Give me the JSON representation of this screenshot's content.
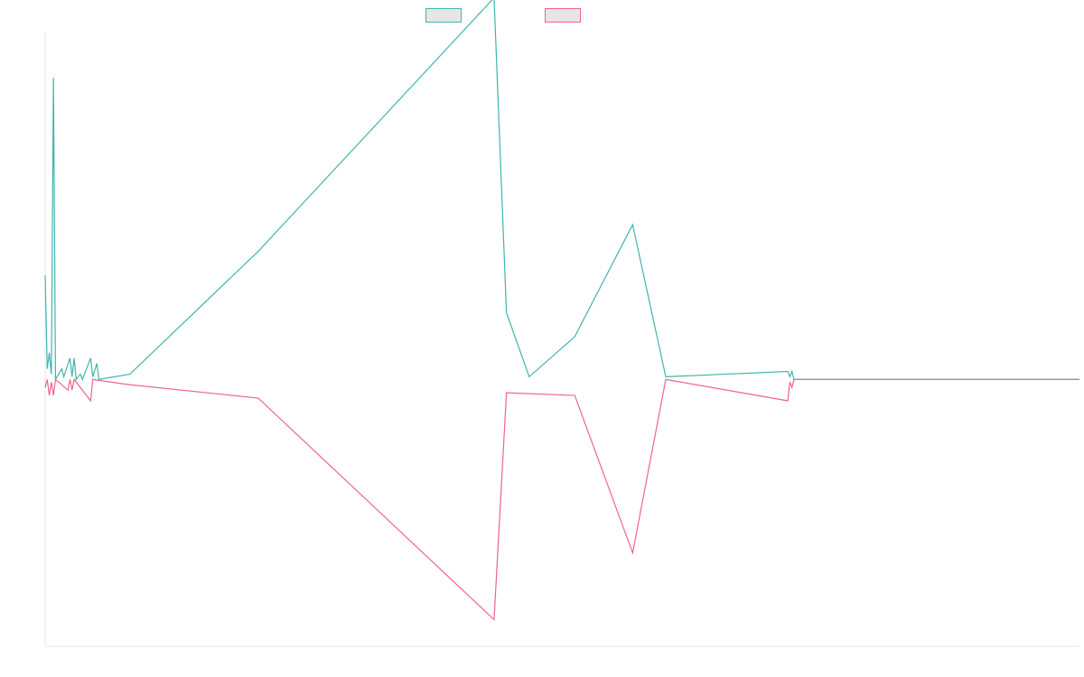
{
  "chart_data": {
    "type": "line",
    "title": "",
    "xlabel": "",
    "ylabel": "",
    "grid": false,
    "legend": "top-center",
    "x_range": [
      0,
      500
    ],
    "ylim": [
      -1.0,
      1.3
    ],
    "baseline": 0,
    "colors": {
      "series_1": "#3fb5ad",
      "series_2": "#f0648c"
    },
    "series": [
      {
        "color": "#3fb5ad",
        "points": [
          [
            0,
            0.39
          ],
          [
            1,
            0.04
          ],
          [
            2,
            0.1
          ],
          [
            3,
            0.02
          ],
          [
            4,
            1.13
          ],
          [
            5,
            0.0
          ],
          [
            8,
            0.04
          ],
          [
            9,
            0.01
          ],
          [
            12,
            0.08
          ],
          [
            13,
            0.01
          ],
          [
            14,
            0.08
          ],
          [
            15,
            0.0
          ],
          [
            17,
            0.02
          ],
          [
            18,
            0.0
          ],
          [
            22,
            0.08
          ],
          [
            23,
            0.01
          ],
          [
            25,
            0.06
          ],
          [
            26,
            0.0
          ],
          [
            41,
            0.02
          ],
          [
            103,
            0.48
          ],
          [
            217,
            1.43
          ],
          [
            223,
            0.25
          ],
          [
            234,
            0.01
          ],
          [
            256,
            0.16
          ],
          [
            284,
            0.58
          ],
          [
            300,
            0.01
          ],
          [
            359,
            0.03
          ],
          [
            360,
            0.01
          ],
          [
            361,
            0.03
          ],
          [
            362,
            0.0
          ],
          [
            500,
            0.0
          ]
        ]
      },
      {
        "color": "#f0648c",
        "points": [
          [
            0,
            -0.03
          ],
          [
            1,
            0.0
          ],
          [
            2,
            -0.06
          ],
          [
            3,
            -0.01
          ],
          [
            4,
            -0.06
          ],
          [
            5,
            0.0
          ],
          [
            11,
            -0.04
          ],
          [
            12,
            0.0
          ],
          [
            13,
            -0.04
          ],
          [
            14,
            0.0
          ],
          [
            22,
            -0.08
          ],
          [
            23,
            0.0
          ],
          [
            41,
            -0.02
          ],
          [
            103,
            -0.07
          ],
          [
            217,
            -0.9
          ],
          [
            223,
            -0.05
          ],
          [
            256,
            -0.06
          ],
          [
            284,
            -0.65
          ],
          [
            300,
            0.0
          ],
          [
            359,
            -0.08
          ],
          [
            360,
            -0.01
          ],
          [
            361,
            -0.03
          ],
          [
            362,
            0.0
          ],
          [
            500,
            0.0
          ]
        ]
      }
    ]
  }
}
